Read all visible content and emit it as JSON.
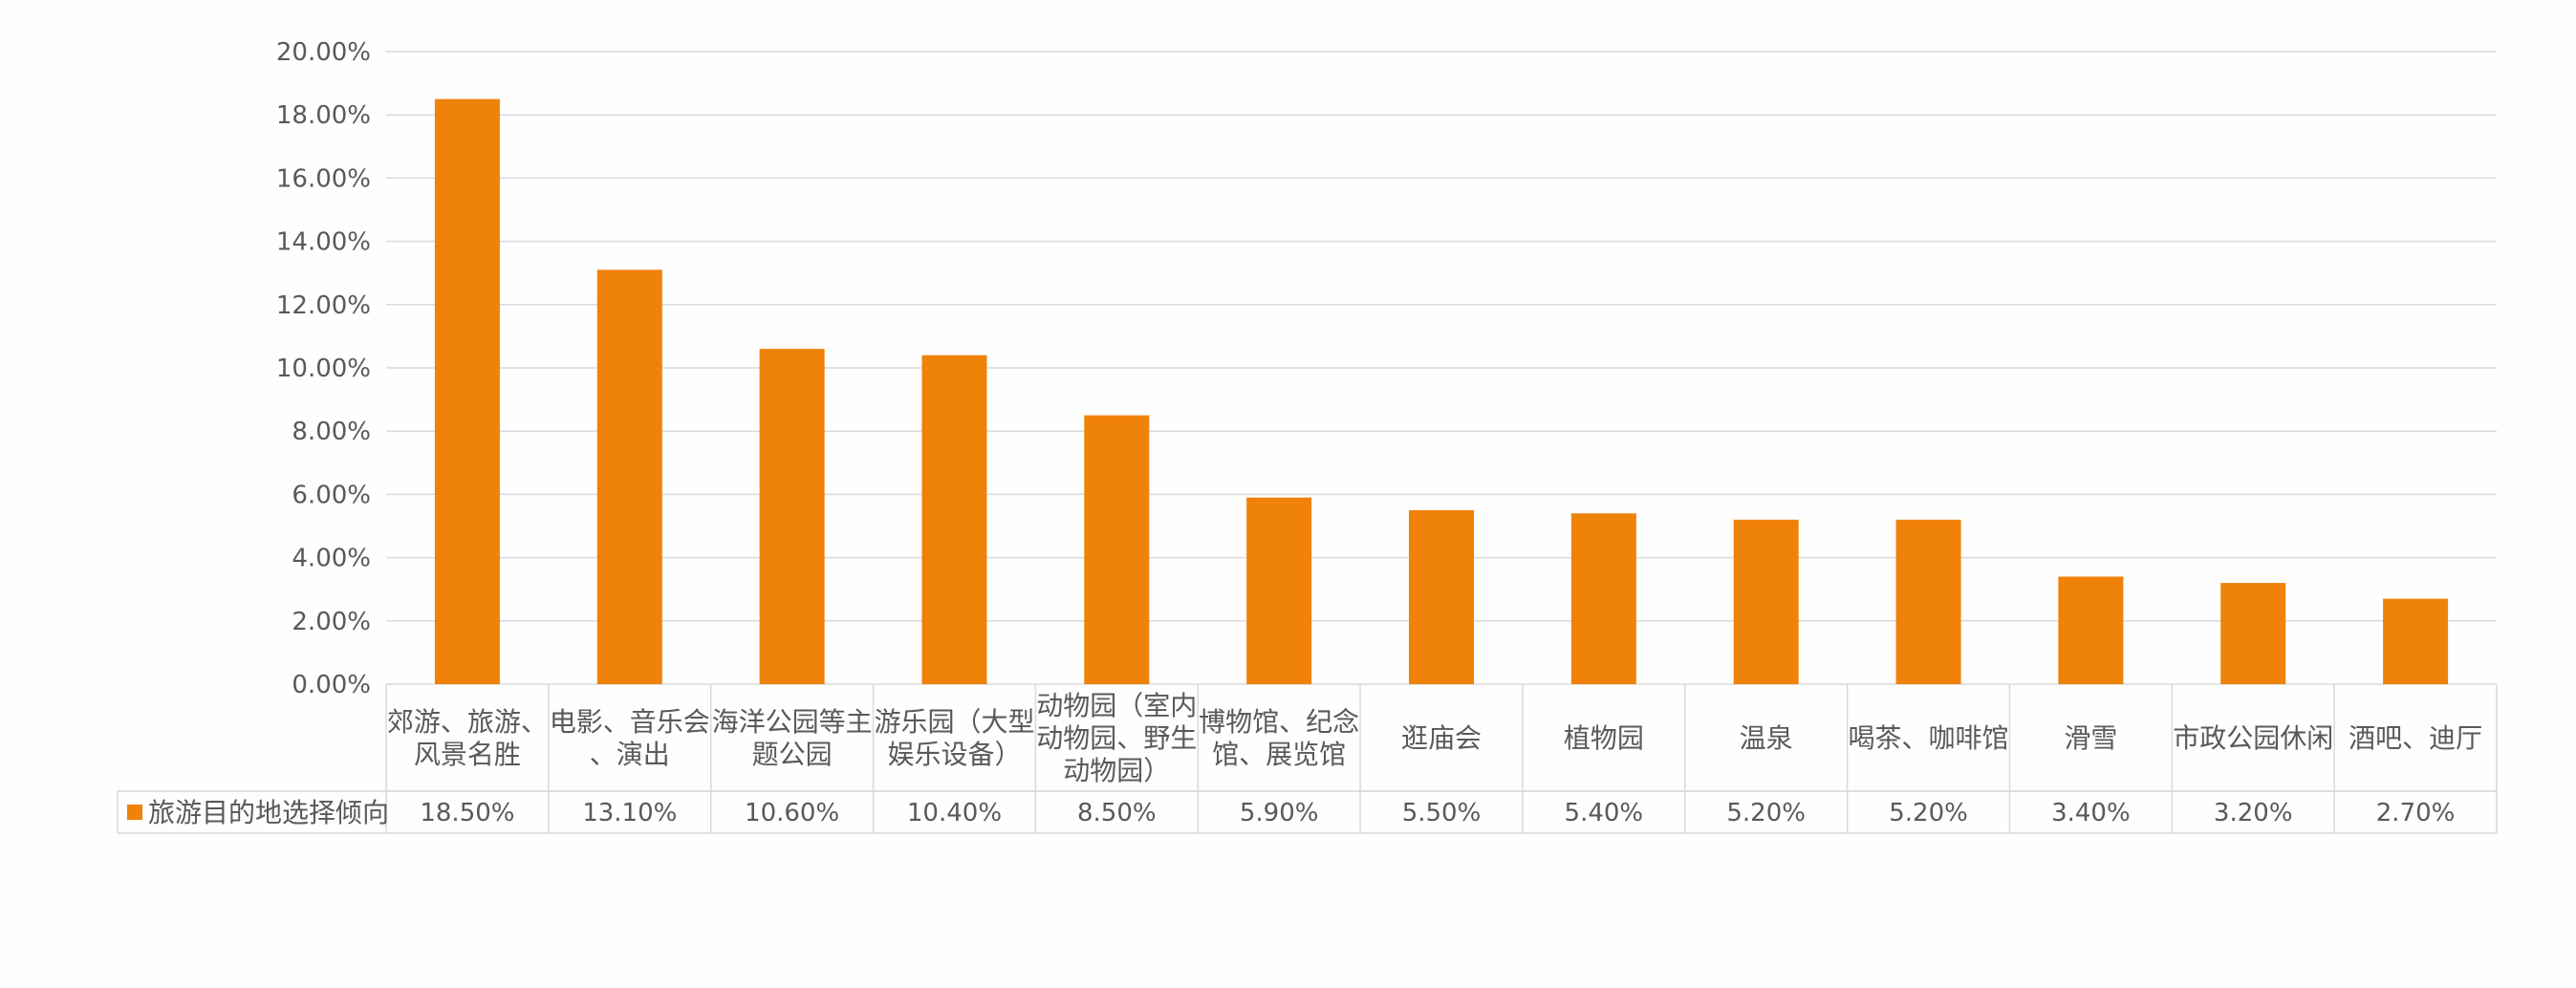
{
  "chart_data": {
    "type": "bar",
    "title": "",
    "xlabel": "",
    "ylabel": "",
    "ylim": [
      0,
      20
    ],
    "yticks": [
      "0.00%",
      "2.00%",
      "4.00%",
      "6.00%",
      "8.00%",
      "10.00%",
      "12.00%",
      "14.00%",
      "16.00%",
      "18.00%",
      "20.00%"
    ],
    "grid": true,
    "legend": "data-table-left",
    "color": "#ef8209",
    "categories": [
      [
        "郊游、旅游、",
        "风景名胜"
      ],
      [
        "电影、音乐会",
        "、演出"
      ],
      [
        "海洋公园等主",
        "题公园"
      ],
      [
        "游乐园（大型",
        "娱乐设备）"
      ],
      [
        "动物园（室内",
        "动物园、野生",
        "动物园）"
      ],
      [
        "博物馆、纪念",
        "馆、展览馆"
      ],
      [
        "逛庙会"
      ],
      [
        "植物园"
      ],
      [
        "温泉"
      ],
      [
        "喝茶、咖啡馆"
      ],
      [
        "滑雪"
      ],
      [
        "市政公园休闲"
      ],
      [
        "酒吧、迪厅"
      ]
    ],
    "series": [
      {
        "name": "旅游目的地选择倾向",
        "values": [
          18.5,
          13.1,
          10.6,
          10.4,
          8.5,
          5.9,
          5.5,
          5.4,
          5.2,
          5.2,
          3.4,
          3.2,
          2.7
        ],
        "labels": [
          "18.50%",
          "13.10%",
          "10.60%",
          "10.40%",
          "8.50%",
          "5.90%",
          "5.50%",
          "5.40%",
          "5.20%",
          "5.20%",
          "3.40%",
          "3.20%",
          "2.70%"
        ]
      }
    ]
  }
}
